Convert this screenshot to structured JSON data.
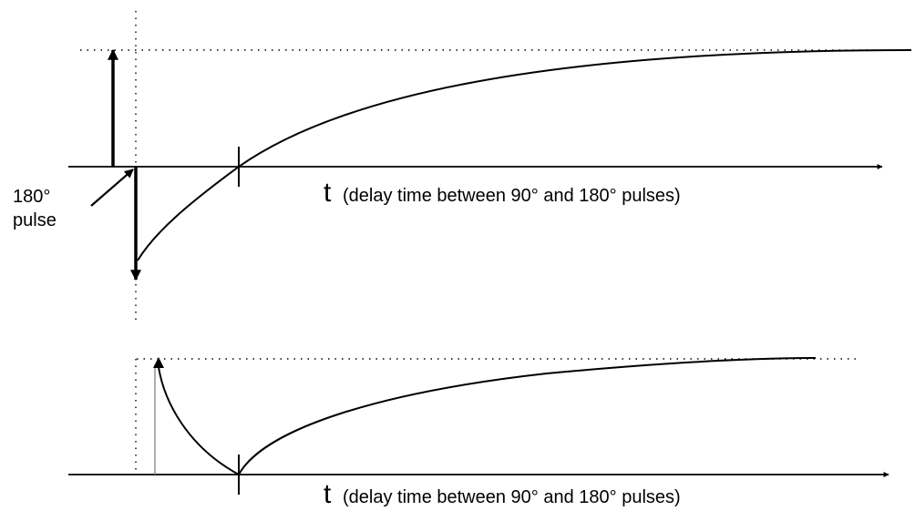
{
  "top_panel": {
    "axis_variable": "t",
    "axis_description": "(delay  time between 90° and 180° pulses)",
    "annotation_line1": "180°",
    "annotation_line2": "pulse"
  },
  "bottom_panel": {
    "axis_variable": "t",
    "axis_description": "(delay  time between 90° and 180° pulses)"
  }
}
